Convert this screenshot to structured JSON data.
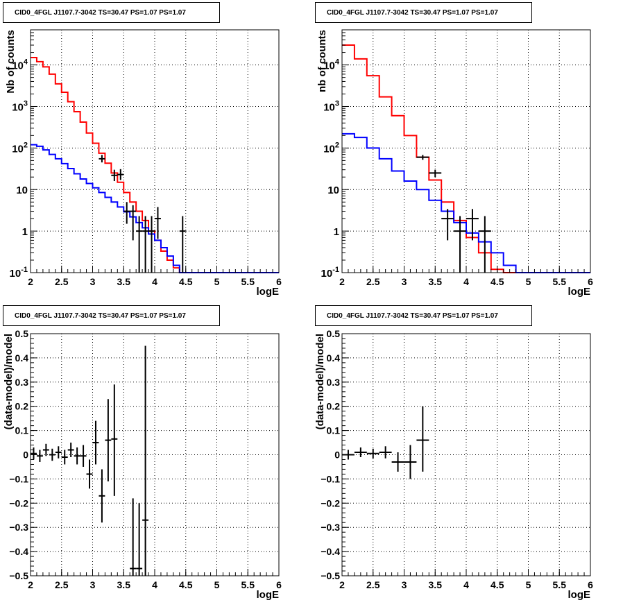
{
  "chart_data": [
    {
      "type": "line",
      "title": "CID0_4FGL J1107.7-3042 TS=30.47 PS=1.07 PS=1.07",
      "xlabel": "logE",
      "ylabel": "Nb of counts",
      "xlim": [
        2,
        6
      ],
      "ylim": [
        0.1,
        70000
      ],
      "yscale": "log",
      "grid": true,
      "x_ticks": [
        "2",
        "2.5",
        "3",
        "3.5",
        "4",
        "4.5",
        "5",
        "5.5",
        "6"
      ],
      "y_ticks": [
        "10^-1",
        "1",
        "10",
        "10^2",
        "10^3",
        "10^4"
      ],
      "series": [
        {
          "color": "#ff0000",
          "style": "step",
          "bin_edges": [
            2.0,
            2.1,
            2.2,
            2.3,
            2.4,
            2.5,
            2.6,
            2.7,
            2.8,
            2.9,
            3.0,
            3.1,
            3.2,
            3.3,
            3.4,
            3.5,
            3.6,
            3.7,
            3.8,
            3.9,
            4.0,
            4.1,
            4.2,
            4.3,
            4.4,
            4.5,
            4.6,
            4.7,
            4.8,
            4.9,
            5.0,
            5.1,
            5.2,
            5.3,
            5.4,
            5.5,
            5.6,
            5.7,
            5.8,
            5.9,
            6.0
          ],
          "values": [
            15000,
            12000,
            9000,
            6000,
            3500,
            2200,
            1300,
            750,
            420,
            230,
            130,
            75,
            43,
            25,
            15,
            8.5,
            5,
            3,
            1.8,
            1.0,
            0.6,
            0.33,
            0.2,
            0.13,
            0.1,
            0.1,
            0.1,
            0.1,
            0.1,
            0.1,
            0.1,
            0.1,
            0.1,
            0.1,
            0.1,
            0.1,
            0.1,
            0.1,
            0.1,
            0.1
          ]
        },
        {
          "color": "#0000ff",
          "style": "step",
          "bin_edges": [
            2.0,
            2.1,
            2.2,
            2.3,
            2.4,
            2.5,
            2.6,
            2.7,
            2.8,
            2.9,
            3.0,
            3.1,
            3.2,
            3.3,
            3.4,
            3.5,
            3.6,
            3.7,
            3.8,
            3.9,
            4.0,
            4.1,
            4.2,
            4.3,
            4.4,
            4.5,
            4.6,
            4.7,
            4.8,
            4.9,
            5.0,
            5.1,
            5.2,
            5.3,
            5.4,
            5.5,
            5.6,
            5.7,
            5.8,
            5.9,
            6.0
          ],
          "values": [
            120,
            110,
            90,
            70,
            55,
            42,
            32,
            24,
            18,
            14,
            11,
            8.5,
            6.5,
            5,
            3.8,
            2.9,
            2.2,
            1.6,
            1.2,
            0.85,
            0.6,
            0.4,
            0.25,
            0.15,
            0.1,
            0.1,
            0.1,
            0.1,
            0.1,
            0.1,
            0.1,
            0.1,
            0.1,
            0.1,
            0.1,
            0.1,
            0.1,
            0.1,
            0.1,
            0.1
          ]
        },
        {
          "color": "#000000",
          "style": "errorbars",
          "x": [
            3.15,
            3.35,
            3.45,
            3.55,
            3.65,
            3.75,
            3.85,
            3.95,
            4.05,
            4.45
          ],
          "xerr": 0.05,
          "y": [
            55,
            22,
            23,
            3,
            3,
            1,
            1,
            1,
            2,
            1
          ],
          "y_low": [
            45,
            16,
            17,
            1.5,
            0.6,
            0.1,
            0.1,
            0.1,
            0.65,
            0.1
          ],
          "y_high": [
            68,
            30,
            31,
            5,
            4.2,
            2.3,
            2.3,
            2.3,
            3.8,
            2.3
          ]
        }
      ]
    },
    {
      "type": "line",
      "title": "CID0_4FGL J1107.7-3042 TS=30.47 PS=1.07 PS=1.07",
      "xlabel": "logE",
      "ylabel": "nb of counts",
      "xlim": [
        2,
        6
      ],
      "ylim": [
        0.1,
        70000
      ],
      "yscale": "log",
      "grid": true,
      "x_ticks": [
        "2",
        "2.5",
        "3",
        "3.5",
        "4",
        "4.5",
        "5",
        "5.5",
        "6"
      ],
      "y_ticks": [
        "10^-1",
        "1",
        "10",
        "10^2",
        "10^3",
        "10^4"
      ],
      "series": [
        {
          "color": "#ff0000",
          "style": "step",
          "bin_edges": [
            2.0,
            2.2,
            2.4,
            2.6,
            2.8,
            3.0,
            3.2,
            3.4,
            3.6,
            3.8,
            4.0,
            4.2,
            4.4,
            4.6,
            4.8,
            5.0,
            5.2,
            5.4,
            5.6,
            5.8,
            6.0
          ],
          "values": [
            30000,
            14000,
            5500,
            1700,
            600,
            200,
            60,
            17,
            5,
            1.8,
            0.7,
            0.3,
            0.12,
            0.1,
            0.1,
            0.1,
            0.1,
            0.1,
            0.1,
            0.1
          ]
        },
        {
          "color": "#0000ff",
          "style": "step",
          "bin_edges": [
            2.0,
            2.2,
            2.4,
            2.6,
            2.8,
            3.0,
            3.2,
            3.4,
            3.6,
            3.8,
            4.0,
            4.2,
            4.4,
            4.6,
            4.8,
            5.0,
            5.2,
            5.4,
            5.6,
            5.8,
            6.0
          ],
          "values": [
            220,
            180,
            100,
            55,
            28,
            16,
            10,
            5.5,
            3,
            1.6,
            0.9,
            0.55,
            0.3,
            0.15,
            0.1,
            0.1,
            0.1,
            0.1,
            0.1,
            0.1
          ]
        },
        {
          "color": "#000000",
          "style": "errorbars",
          "x": [
            3.3,
            3.5,
            3.7,
            3.9,
            4.1,
            4.3
          ],
          "xerr": 0.1,
          "y": [
            60,
            25,
            2,
            1,
            2,
            1
          ],
          "y_low": [
            52,
            20,
            0.6,
            0.1,
            0.6,
            0.1
          ],
          "y_high": [
            68,
            30,
            3.4,
            2.3,
            3.4,
            2.3
          ]
        }
      ]
    },
    {
      "type": "scatter",
      "title": "CID0_4FGL J1107.7-3042 TS=30.47 PS=1.07 PS=1.07",
      "xlabel": "logE",
      "ylabel": "(data-model)/model",
      "xlim": [
        2,
        6
      ],
      "ylim": [
        -0.5,
        0.5
      ],
      "grid": true,
      "x_ticks": [
        "2",
        "2.5",
        "3",
        "3.5",
        "4",
        "4.5",
        "5",
        "5.5",
        "6"
      ],
      "y_ticks": [
        "−0.5",
        "−0.4",
        "−0.3",
        "−0.2",
        "−0.1",
        "0",
        "0.1",
        "0.2",
        "0.3",
        "0.4",
        "0.5"
      ],
      "series": [
        {
          "color": "#000000",
          "style": "errorbars",
          "x": [
            2.05,
            2.15,
            2.25,
            2.35,
            2.45,
            2.55,
            2.65,
            2.75,
            2.85,
            2.95,
            3.05,
            3.15,
            3.25,
            3.35,
            3.65,
            3.75,
            3.85
          ],
          "xerr": 0.05,
          "y": [
            0.005,
            -0.005,
            0.02,
            0.0,
            0.01,
            -0.01,
            0.02,
            -0.005,
            -0.005,
            -0.08,
            0.05,
            -0.17,
            0.06,
            0.065,
            -0.47,
            -0.47,
            -0.27
          ],
          "y_low": [
            -0.02,
            -0.03,
            -0.005,
            -0.025,
            -0.015,
            -0.04,
            -0.01,
            -0.04,
            -0.05,
            -0.14,
            -0.04,
            -0.28,
            -0.11,
            -0.17,
            -0.5,
            -0.5,
            -0.5
          ],
          "y_high": [
            0.03,
            0.02,
            0.045,
            0.025,
            0.035,
            0.02,
            0.05,
            0.03,
            0.04,
            -0.02,
            0.14,
            -0.06,
            0.23,
            0.29,
            -0.18,
            -0.2,
            0.45
          ]
        }
      ]
    },
    {
      "type": "scatter",
      "title": "CID0_4FGL J1107.7-3042 TS=30.47 PS=1.07 PS=1.07",
      "xlabel": "logE",
      "ylabel": "(data-model)/model",
      "xlim": [
        2,
        6
      ],
      "ylim": [
        -0.5,
        0.5
      ],
      "grid": true,
      "x_ticks": [
        "2",
        "2.5",
        "3",
        "3.5",
        "4",
        "4.5",
        "5",
        "5.5",
        "6"
      ],
      "y_ticks": [
        "−0.5",
        "−0.4",
        "−0.3",
        "−0.2",
        "−0.1",
        "0",
        "0.1",
        "0.2",
        "0.3",
        "0.4",
        "0.5"
      ],
      "series": [
        {
          "color": "#000000",
          "style": "errorbars",
          "x": [
            2.1,
            2.3,
            2.5,
            2.7,
            2.9,
            3.1,
            3.3
          ],
          "xerr": 0.1,
          "y": [
            0.0,
            0.01,
            0.005,
            0.01,
            -0.03,
            -0.03,
            0.06
          ],
          "y_low": [
            -0.02,
            -0.01,
            -0.015,
            -0.015,
            -0.07,
            -0.1,
            -0.07
          ],
          "y_high": [
            0.02,
            0.03,
            0.025,
            0.035,
            0.01,
            0.04,
            0.2
          ]
        }
      ]
    }
  ]
}
